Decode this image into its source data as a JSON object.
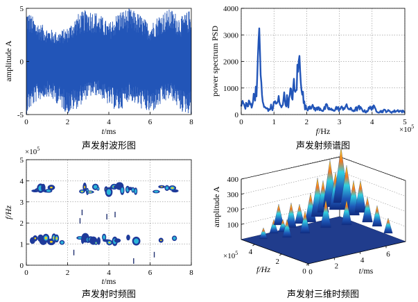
{
  "chart_data": [
    {
      "id": "waveform",
      "type": "area",
      "caption": "声发射波形图",
      "xlabel_var": "t",
      "xlabel_unit": "/ms",
      "ylabel": "amplitude A",
      "xlim": [
        0,
        8
      ],
      "ylim": [
        -5,
        5
      ],
      "xticks": [
        "0",
        "2",
        "4",
        "6",
        "8"
      ],
      "yticks": [
        "-5",
        "0",
        "5"
      ],
      "color": "#2255b8",
      "envelope": {
        "t": [
          0,
          0.5,
          1,
          1.5,
          2,
          2.5,
          3,
          3.5,
          4,
          4.5,
          5,
          5.5,
          6,
          6.5,
          7,
          7.5,
          8
        ],
        "upper": [
          5,
          3.8,
          3.2,
          2.8,
          3.2,
          4.5,
          5,
          4.6,
          3.6,
          4.8,
          5,
          4.5,
          3.5,
          4.6,
          5,
          4.2,
          5
        ],
        "lower": [
          -5,
          -3.8,
          -3.3,
          -4.0,
          -5,
          -4.4,
          -3.4,
          -3.2,
          -4.2,
          -4.8,
          -3.6,
          -4.4,
          -5,
          -4.2,
          -3.5,
          -4.8,
          -5
        ]
      }
    },
    {
      "id": "psd",
      "type": "line",
      "caption": "声发射频谱图",
      "xlabel_var": "f",
      "xlabel_unit": "/Hz",
      "ylabel": "power spectrum PSD",
      "x_exponent": "×10",
      "x_exponent_power": "5",
      "xlim": [
        0,
        5
      ],
      "ylim": [
        0,
        4000
      ],
      "xticks": [
        "0",
        "1",
        "2",
        "3",
        "4",
        "5"
      ],
      "yticks": [
        "0",
        "1000",
        "2000",
        "3000",
        "4000"
      ],
      "color": "#2255b8",
      "grid": true,
      "series": [
        {
          "x": [
            0,
            0.05,
            0.1,
            0.15,
            0.2,
            0.25,
            0.3,
            0.35,
            0.4,
            0.45,
            0.5,
            0.53,
            0.56,
            0.58,
            0.6,
            0.62,
            0.65,
            0.7,
            0.75,
            0.8,
            0.85,
            0.9,
            0.95,
            1.0,
            1.05,
            1.1,
            1.15,
            1.2,
            1.25,
            1.3,
            1.35,
            1.4,
            1.45,
            1.5,
            1.55,
            1.6,
            1.65,
            1.7,
            1.75,
            1.8,
            1.83,
            1.86,
            1.9,
            1.95,
            2.0,
            2.1,
            2.2,
            2.3,
            2.4,
            2.5,
            2.6,
            2.7,
            2.8,
            2.9,
            3.0,
            3.2,
            3.4,
            3.6,
            3.8,
            4.0,
            4.2,
            4.4,
            4.6,
            4.8,
            5.0
          ],
          "y": [
            300,
            500,
            250,
            400,
            300,
            450,
            350,
            500,
            700,
            1000,
            1400,
            2200,
            3750,
            2600,
            1300,
            800,
            500,
            300,
            200,
            250,
            150,
            300,
            200,
            400,
            500,
            350,
            600,
            250,
            400,
            700,
            450,
            550,
            400,
            800,
            650,
            1100,
            700,
            1300,
            1800,
            2050,
            1600,
            1000,
            500,
            300,
            200,
            350,
            250,
            200,
            250,
            150,
            300,
            200,
            150,
            250,
            200,
            300,
            150,
            250,
            100,
            300,
            100,
            150,
            100,
            150,
            100
          ]
        }
      ]
    },
    {
      "id": "spectrogram",
      "type": "heatmap",
      "caption": "声发射时频图",
      "xlabel_var": "t",
      "xlabel_unit": "/ms",
      "ylabel": "f/Hz",
      "y_exponent": "×10",
      "y_exponent_power": "5",
      "xlim": [
        0,
        8
      ],
      "ylim": [
        0,
        5
      ],
      "xticks": [
        "0",
        "2",
        "4",
        "6",
        "8"
      ],
      "yticks": [
        "0",
        "1",
        "2",
        "3",
        "4",
        "5"
      ],
      "grid": true,
      "bands": [
        {
          "f": 3.6,
          "segments": [
            [
              0.3,
              1.6
            ],
            [
              2.7,
              5.4
            ],
            [
              6.3,
              7.3
            ]
          ]
        },
        {
          "f": 1.2,
          "segments": [
            [
              0.3,
              1.8
            ],
            [
              2.6,
              5.4
            ],
            [
              6.4,
              7.3
            ]
          ]
        }
      ]
    },
    {
      "id": "tf3d",
      "type": "area",
      "caption": "声发射三维时频图",
      "xlabel_var": "t",
      "xlabel_unit": "/ms",
      "ylabel_f": "f/Hz",
      "zlabel": "amplitude A",
      "f_exponent": "×10",
      "f_exponent_power": "5",
      "zlim": [
        0,
        400
      ],
      "zticks": [
        "100",
        "200",
        "300",
        "400"
      ],
      "tticks": [
        "0",
        "2",
        "4",
        "6"
      ],
      "fticks": [
        "0",
        "2",
        "4"
      ]
    }
  ]
}
